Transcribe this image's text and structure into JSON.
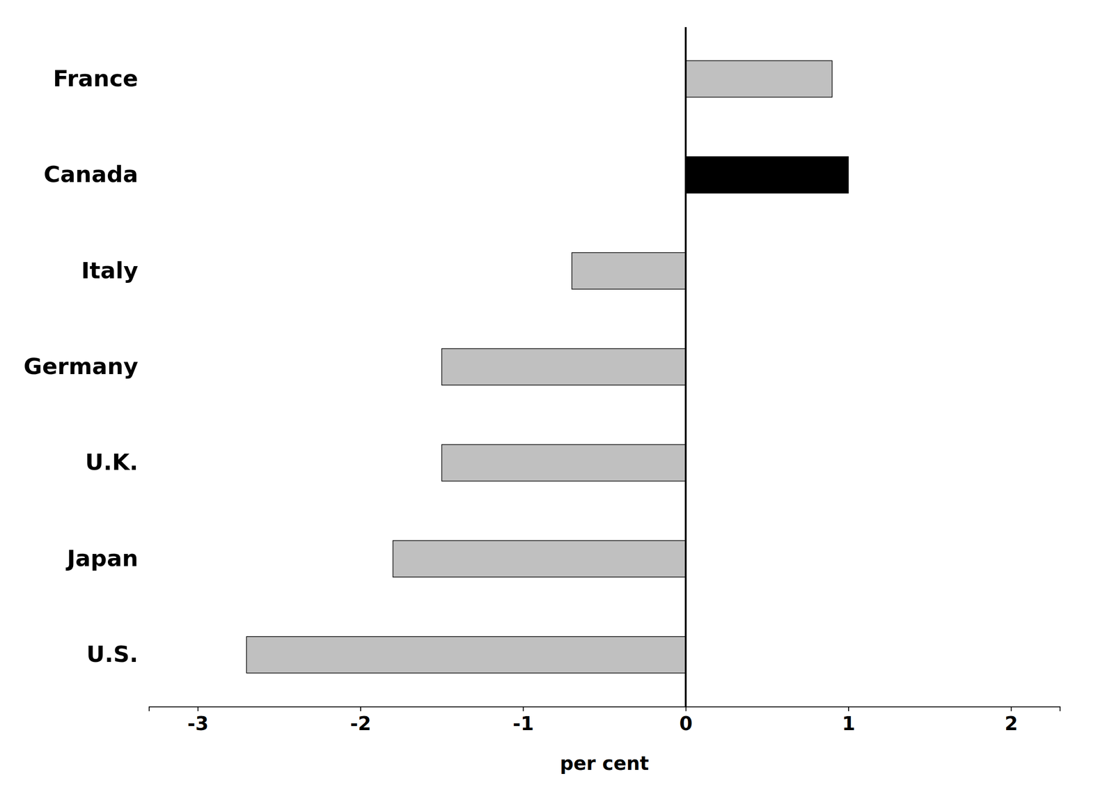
{
  "chart_data": {
    "type": "bar",
    "orientation": "horizontal",
    "categories": [
      "France",
      "Canada",
      "Italy",
      "Germany",
      "U.K.",
      "Japan",
      "U.S."
    ],
    "values": [
      0.9,
      1.0,
      -0.7,
      -1.5,
      -1.5,
      -1.8,
      -2.7
    ],
    "colors": [
      "#c0c0c0",
      "#000000",
      "#c0c0c0",
      "#c0c0c0",
      "#c0c0c0",
      "#c0c0c0",
      "#c0c0c0"
    ],
    "xlabel": "per cent",
    "xlim": [
      -3.3,
      2.3
    ],
    "xticks": [
      -3,
      -2,
      -1,
      0,
      1,
      2
    ],
    "grid": false
  }
}
